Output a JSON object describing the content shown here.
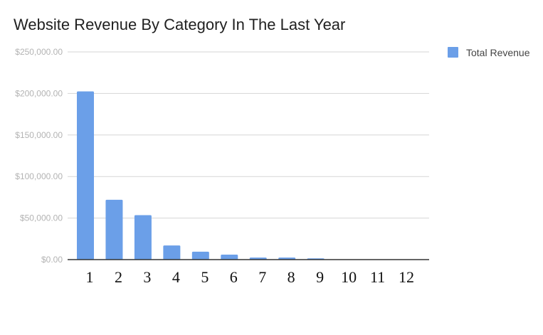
{
  "chart_data": {
    "type": "bar",
    "title": "Website Revenue By Category In The Last Year",
    "xlabel": "",
    "ylabel": "",
    "categories": [
      "1",
      "2",
      "3",
      "4",
      "5",
      "6",
      "7",
      "8",
      "9",
      "10",
      "11",
      "12"
    ],
    "series": [
      {
        "name": "Total Revenue",
        "color": "#6b9fe8",
        "values": [
          202500,
          72000,
          53500,
          17000,
          9500,
          6000,
          2500,
          2500,
          1500,
          0,
          0,
          0
        ]
      }
    ],
    "ylim": [
      0,
      250000
    ],
    "yticks": [
      0,
      50000,
      100000,
      150000,
      200000,
      250000
    ],
    "ytick_labels": [
      "$0.00",
      "$50,000.00",
      "$100,000.00",
      "$150,000.00",
      "$200,000.00",
      "$250,000.00"
    ],
    "grid": true,
    "legend_position": "top-right"
  }
}
